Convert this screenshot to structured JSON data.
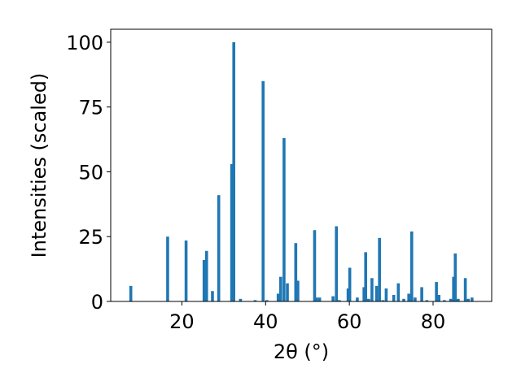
{
  "chart_data": {
    "type": "bar",
    "title": "",
    "xlabel": "2θ (°)",
    "ylabel": "Intensities (scaled)",
    "xlim": [
      3,
      94
    ],
    "ylim": [
      0,
      105
    ],
    "xticks": [
      20,
      40,
      60,
      80
    ],
    "yticks": [
      0,
      25,
      50,
      75,
      100
    ],
    "grid": false,
    "bar_color": "#1f77b4",
    "bar_width": 0.7,
    "series": [
      {
        "x": [
          7.8,
          16.6,
          21.0,
          25.3,
          25.9,
          27.3,
          28.8,
          31.9,
          32.4,
          34.0,
          37.5,
          39.4,
          40.3,
          43.0,
          43.6,
          44.4,
          45.2,
          47.2,
          47.7,
          51.7,
          52.2,
          52.9,
          56.1,
          56.9,
          57.6,
          59.7,
          60.1,
          61.9,
          63.5,
          63.9,
          64.6,
          65.4,
          66.5,
          67.2,
          68.0,
          68.8,
          70.6,
          71.7,
          73.0,
          74.2,
          74.9,
          75.7,
          77.3,
          78.5,
          80.8,
          81.4,
          82.7,
          84.2,
          84.9,
          85.3,
          86.0,
          87.7,
          88.4,
          89.3
        ],
        "y": [
          6,
          25,
          23.5,
          16,
          19.5,
          4,
          41,
          53,
          100,
          1,
          0.5,
          85,
          0.5,
          3,
          9.5,
          63,
          7,
          22.5,
          8,
          27.5,
          1.5,
          1.5,
          2,
          29,
          0.5,
          5,
          13,
          1.5,
          5.5,
          19,
          1,
          9,
          6,
          24.5,
          0.5,
          5,
          2.5,
          7,
          1,
          3,
          27,
          1.5,
          5.5,
          0.5,
          7.5,
          2.5,
          0.5,
          1,
          9.5,
          18.5,
          1,
          9,
          1,
          1.5
        ]
      }
    ]
  }
}
